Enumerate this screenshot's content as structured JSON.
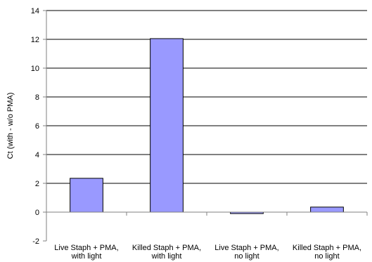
{
  "chart_data": {
    "type": "bar",
    "categories": [
      [
        "Live Staph + PMA,",
        "with light"
      ],
      [
        "Killed Staph + PMA,",
        "with light"
      ],
      [
        "Live Staph + PMA,",
        "no light"
      ],
      [
        "Killed Staph + PMA,",
        "no light"
      ]
    ],
    "values": [
      2.35,
      12.05,
      -0.1,
      0.35
    ],
    "xlabel": "",
    "ylabel": "Ct (with - w/o PMA)",
    "ylim": [
      -2,
      14
    ],
    "yticks": [
      -2,
      0,
      2,
      4,
      6,
      8,
      10,
      12,
      14
    ],
    "grid": true,
    "legend": "none",
    "colors": {
      "bar_fill": "#9999ff",
      "bar_stroke": "#000000",
      "grid": "#000000",
      "axis": "#808080"
    }
  }
}
